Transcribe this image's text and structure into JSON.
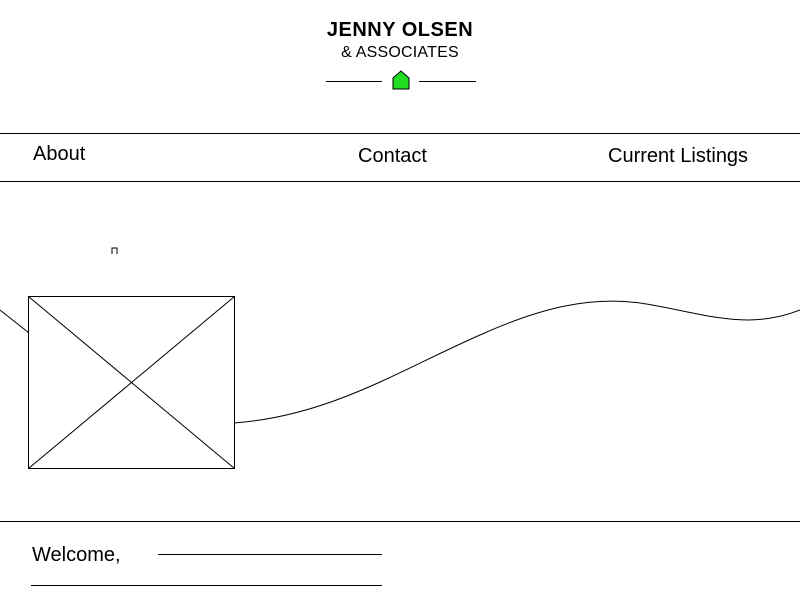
{
  "brand": {
    "title": "JENNY OLSEN",
    "subtitle": "& ASSOCIATES",
    "icon": "home-icon",
    "icon_color": "#22dd22"
  },
  "nav": {
    "items": [
      {
        "label": "About"
      },
      {
        "label": "Contact"
      },
      {
        "label": "Current Listings"
      }
    ]
  },
  "hero": {
    "image": "image-placeholder"
  },
  "content": {
    "welcome": "Welcome,"
  }
}
